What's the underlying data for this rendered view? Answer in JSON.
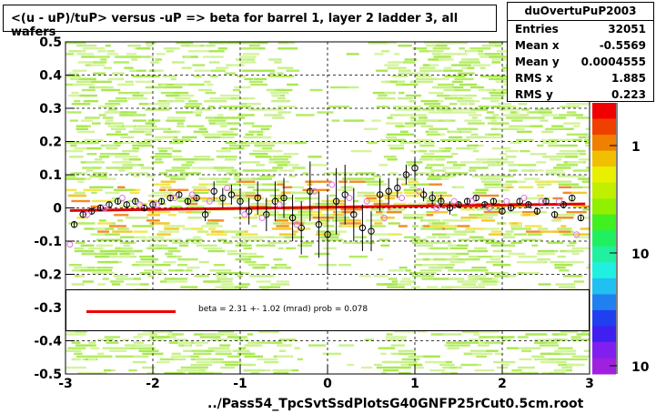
{
  "title": "<(u - uP)/tuP> versus  -uP => beta for barrel 1, layer 2 ladder 3, all wafers",
  "stats": {
    "name": "duOvertuPuP2003",
    "rows": [
      {
        "key": "Entries",
        "value": "32051"
      },
      {
        "key": "Mean x",
        "value": "-0.5569"
      },
      {
        "key": "Mean y",
        "value": "0.0004555"
      },
      {
        "key": "RMS x",
        "value": "1.885"
      },
      {
        "key": "RMS y",
        "value": "0.223"
      }
    ]
  },
  "legend_text": "beta =    2.31 +-  1.02 (mrad) prob = 0.078",
  "footer": "../Pass54_TpcSvtSsdPlotsG40GNFP25rCut0.5cm.root",
  "colorbar_labels": [
    "1",
    "10",
    "10"
  ],
  "colors": {
    "fit": "#e00000",
    "points_black": "#000000",
    "points_pink": "#e070e0"
  },
  "chart_data": {
    "type": "scatter",
    "title": "<(u - uP)/tuP> versus  -uP => beta for barrel 1, layer 2 ladder 3, all wafers",
    "xlim": [
      -3,
      3
    ],
    "ylim": [
      -0.5,
      0.5
    ],
    "x_ticks": [
      "-3",
      "-2",
      "-1",
      "0",
      "1",
      "2",
      "3"
    ],
    "y_ticks": [
      "-0.5",
      "-0.4",
      "-0.3",
      "-0.2",
      "-0.1",
      "0",
      "0.1",
      "0.2",
      "0.3",
      "0.4",
      "0.5"
    ],
    "grid": true,
    "fit_line": {
      "x": [
        -2.95,
        2.95
      ],
      "y": [
        -0.008,
        0.012
      ]
    },
    "series": [
      {
        "x": [
          -2.9,
          -2.8,
          -2.7,
          -2.6,
          -2.5,
          -2.4,
          -2.3,
          -2.2,
          -2.1,
          -2.0,
          -1.9,
          -1.8,
          -1.7,
          -1.6,
          -1.5,
          -1.4,
          -1.3,
          -1.2,
          -1.1,
          -1.0,
          -0.9,
          -0.8,
          -0.7,
          -0.6,
          -0.5,
          -0.4,
          -0.3,
          -0.2,
          -0.1,
          0.0,
          0.1,
          0.2,
          0.3,
          0.4,
          0.5,
          0.6,
          0.7,
          0.8,
          0.9,
          1.0,
          1.1,
          1.2,
          1.3,
          1.4,
          1.5,
          1.6,
          1.7,
          1.8,
          1.9,
          2.0,
          2.1,
          2.2,
          2.3,
          2.4,
          2.5,
          2.6,
          2.7,
          2.8,
          2.9
        ],
        "y": [
          -0.05,
          -0.02,
          -0.01,
          0.0,
          0.01,
          0.02,
          0.01,
          0.02,
          0.0,
          0.01,
          0.02,
          0.03,
          0.04,
          0.02,
          0.03,
          -0.02,
          0.05,
          0.03,
          0.04,
          0.02,
          -0.01,
          0.03,
          -0.02,
          0.02,
          0.03,
          -0.03,
          -0.06,
          0.05,
          -0.05,
          -0.08,
          0.02,
          0.04,
          -0.02,
          -0.06,
          -0.07,
          0.04,
          0.05,
          0.06,
          0.1,
          0.12,
          0.04,
          0.03,
          0.02,
          0.0,
          0.01,
          0.02,
          0.03,
          0.01,
          0.02,
          -0.01,
          0.0,
          0.02,
          0.01,
          -0.01,
          0.02,
          -0.02,
          0.01,
          0.03,
          -0.03
        ],
        "yerr": [
          0.01,
          0.01,
          0.01,
          0.01,
          0.01,
          0.01,
          0.01,
          0.01,
          0.01,
          0.01,
          0.01,
          0.01,
          0.01,
          0.01,
          0.01,
          0.02,
          0.03,
          0.03,
          0.03,
          0.04,
          0.04,
          0.05,
          0.05,
          0.06,
          0.06,
          0.07,
          0.08,
          0.09,
          0.1,
          0.12,
          0.1,
          0.09,
          0.08,
          0.07,
          0.06,
          0.05,
          0.04,
          0.03,
          0.03,
          0.03,
          0.02,
          0.02,
          0.02,
          0.02,
          0.01,
          0.01,
          0.01,
          0.01,
          0.01,
          0.01,
          0.01,
          0.01,
          0.01,
          0.01,
          0.01,
          0.01,
          0.01,
          0.01,
          0.01
        ]
      },
      {
        "x": [
          -2.95,
          -2.75,
          -2.55,
          -2.35,
          -2.15,
          -1.95,
          -1.75,
          -1.55,
          -1.35,
          -1.15,
          -0.95,
          -0.75,
          -0.55,
          -0.35,
          -0.15,
          0.05,
          0.25,
          0.45,
          0.65,
          0.85,
          1.05,
          1.25,
          1.45,
          1.65,
          1.85,
          2.05,
          2.25,
          2.45,
          2.65,
          2.85
        ],
        "y": [
          -0.11,
          -0.02,
          0.0,
          0.03,
          0.01,
          0.01,
          0.03,
          0.04,
          0.02,
          0.06,
          -0.02,
          -0.03,
          0.01,
          -0.05,
          0.05,
          0.07,
          0.03,
          0.02,
          -0.03,
          0.03,
          0.05,
          0.0,
          0.02,
          0.02,
          0.0,
          0.02,
          0.03,
          0.02,
          0.02,
          -0.08
        ]
      }
    ]
  }
}
